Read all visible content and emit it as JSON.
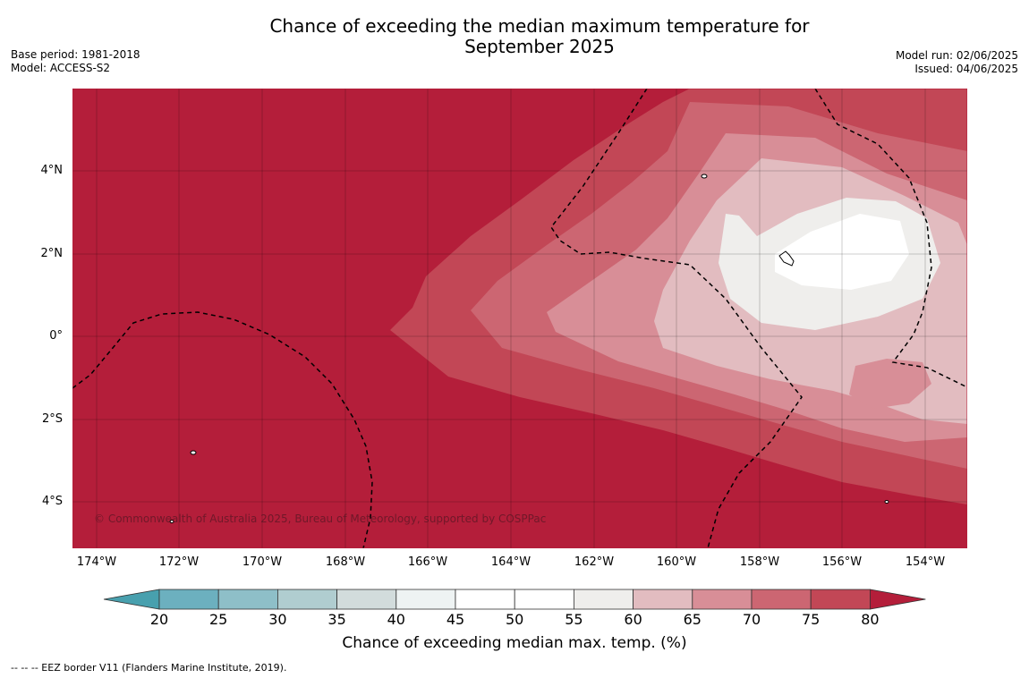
{
  "title_line1": "Chance of exceeding the median maximum temperature for",
  "title_line2": "September 2025",
  "meta_left": [
    "Base period: 1981-2018",
    "Model: ACCESS-S2"
  ],
  "meta_right": [
    "Model run: 02/06/2025",
    "Issued: 04/06/2025"
  ],
  "copyright": "© Commonwealth of Australia 2025, Bureau of Meteorology, supported by COSPPac",
  "lat_ticks": [
    "4°N",
    "2°N",
    "0°",
    "2°S",
    "4°S"
  ],
  "lon_ticks": [
    "174°W",
    "172°W",
    "170°W",
    "168°W",
    "166°W",
    "164°W",
    "162°W",
    "160°W",
    "158°W",
    "156°W",
    "154°W"
  ],
  "colorbar": {
    "labels": [
      "20",
      "25",
      "30",
      "35",
      "40",
      "45",
      "50",
      "55",
      "60",
      "65",
      "70",
      "75",
      "80"
    ],
    "colors": [
      "#48a0ae",
      "#6cb0bf",
      "#8ebfc8",
      "#b0cdd0",
      "#d2dcdc",
      "#eef3f3",
      "#ffffff",
      "#ffffff",
      "#efeeec",
      "#e2bcc0",
      "#d88e97",
      "#cc6672",
      "#c24756",
      "#b41e3a"
    ],
    "title": "Chance of exceeding median max. temp. (%)"
  },
  "footnote": "--  --  -- EEZ border V11 (Flanders Marine Institute, 2019)."
}
